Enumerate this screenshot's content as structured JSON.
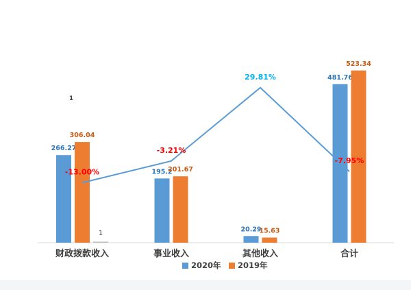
{
  "chart_data": {
    "type": "bar",
    "categories": [
      "财政拨款收入",
      "事业收入",
      "其他收入",
      "合计"
    ],
    "series": [
      {
        "name": "2020年",
        "values": [
          266.27,
          195.2,
          20.29,
          481.76
        ],
        "labels": [
          "266.27",
          "195.2",
          "20.29",
          "481.76"
        ],
        "color": "#5b9bd5",
        "label_color": "#2e75b6"
      },
      {
        "name": "2019年",
        "values": [
          306.04,
          201.67,
          15.63,
          523.34
        ],
        "labels": [
          "306.04",
          "201.67",
          "15.63",
          "523.34"
        ],
        "color": "#ed7d31",
        "label_color": "#c55a11"
      }
    ],
    "extra_bar": {
      "category_index": 0,
      "value": 1,
      "label": "1",
      "color": "#bfbfbf"
    },
    "growth_line": {
      "values": [
        -13.0,
        -3.21,
        29.81,
        -7.95
      ],
      "labels": [
        "-13.00%",
        "-3.21%",
        "29.81%",
        "-7.95%"
      ],
      "color": "#5b9bd5",
      "label_colors": [
        "#ff0000",
        "#ff0000",
        "#00b0f0",
        "#ff0000"
      ],
      "range": [
        -40,
        60
      ]
    },
    "stray_label": "1",
    "ylim": [
      0,
      560
    ],
    "grid": false,
    "legend_position": "bottom"
  }
}
